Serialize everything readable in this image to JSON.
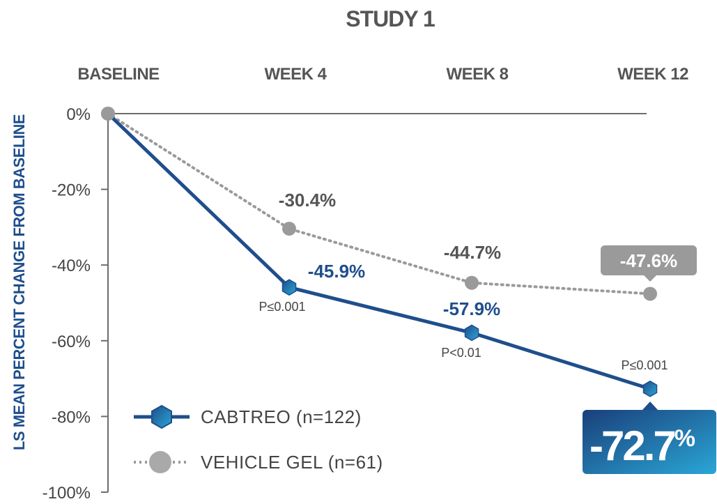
{
  "chart_data": {
    "type": "line",
    "title": "STUDY 1",
    "ylabel": "LS MEAN PERCENT CHANGE FROM BASELINE",
    "categories": [
      "BASELINE",
      "WEEK 4",
      "WEEK 8",
      "WEEK 12"
    ],
    "y_ticks": [
      "0%",
      "-20%",
      "-40%",
      "-60%",
      "-80%",
      "-100%"
    ],
    "ylim": [
      -100,
      0
    ],
    "series": [
      {
        "name": "CABTREO (n=122)",
        "values": [
          0,
          -45.9,
          -57.9,
          -72.7
        ],
        "labels": [
          "",
          "-45.9%",
          "-57.9%",
          "-72.7%"
        ],
        "p_values": [
          "",
          "P≤0.001",
          "P<0.01",
          "P≤0.001"
        ],
        "color": "#1f4e8c",
        "style": "solid",
        "marker": "hexagon"
      },
      {
        "name": "VEHICLE GEL (n=61)",
        "values": [
          0,
          -30.4,
          -44.7,
          -47.6
        ],
        "labels": [
          "",
          "-30.4%",
          "-44.7%",
          "-47.6%"
        ],
        "color": "#9a9a9a",
        "style": "dotted",
        "marker": "circle"
      }
    ],
    "legend_position": "bottom-left",
    "grid": false
  }
}
